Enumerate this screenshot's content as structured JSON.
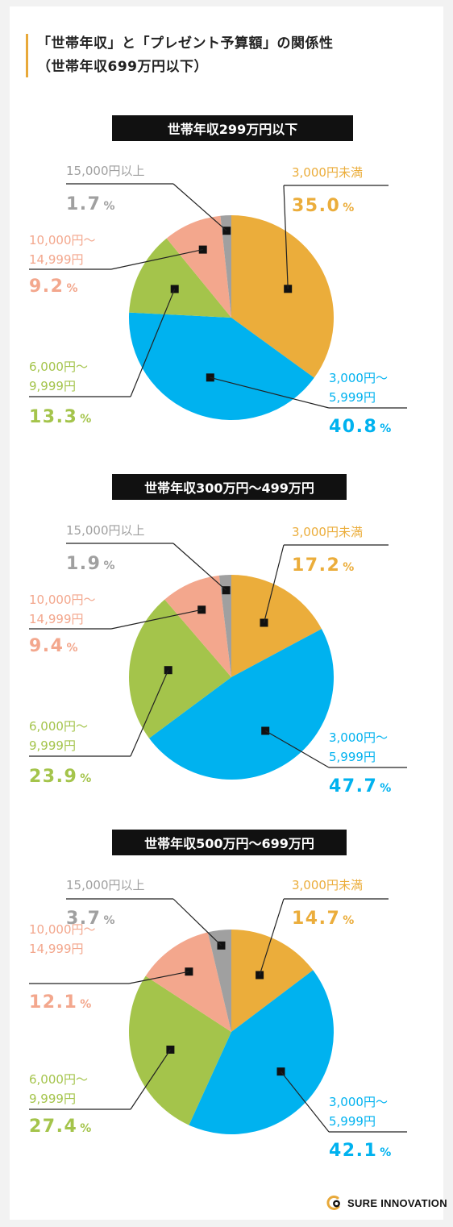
{
  "title": {
    "line1": "「世帯年収」と「プレゼント予算額」の関係性",
    "line2": "（世帯年収699万円以下）"
  },
  "colors": {
    "under_3000": "#ebad3b",
    "c3000_5999": "#00b2ef",
    "c6000_9999": "#a4c44b",
    "c10000_14999": "#f3a78d",
    "over_15000": "#a0a0a0",
    "accent": "#e8a93a"
  },
  "chart_data": [
    {
      "type": "pie",
      "title": "世帯年収299万円以下",
      "categories": [
        "3,000円未満",
        "3,000円〜5,999円",
        "6,000円〜9,999円",
        "10,000円〜14,999円",
        "15,000円以上"
      ],
      "values": [
        35.0,
        40.8,
        13.3,
        9.2,
        1.7
      ],
      "value_labels": [
        "35.0",
        "40.8",
        "13.3",
        "9.2",
        "1.7"
      ],
      "unit": "%"
    },
    {
      "type": "pie",
      "title": "世帯年収300万円〜499万円",
      "categories": [
        "3,000円未満",
        "3,000円〜5,999円",
        "6,000円〜9,999円",
        "10,000円〜14,999円",
        "15,000円以上"
      ],
      "values": [
        17.2,
        47.7,
        23.9,
        9.4,
        1.9
      ],
      "value_labels": [
        "17.2",
        "47.7",
        "23.9",
        "9.4",
        "1.9"
      ],
      "unit": "%"
    },
    {
      "type": "pie",
      "title": "世帯年収500万円〜699万円",
      "categories": [
        "3,000円未満",
        "3,000円〜5,999円",
        "6,000円〜9,999円",
        "10,000円〜14,999円",
        "15,000円以上"
      ],
      "values": [
        14.7,
        42.1,
        27.4,
        12.1,
        3.7
      ],
      "value_labels": [
        "14.7",
        "42.1",
        "27.4",
        "12.1",
        "3.7"
      ],
      "unit": "%"
    }
  ],
  "labels": {
    "under_3000": [
      "3,000円未満"
    ],
    "c3000_5999": [
      "3,000円〜",
      "5,999円"
    ],
    "c6000_9999": [
      "6,000円〜",
      "9,999円"
    ],
    "c10000_14999": [
      "10,000円〜",
      "14,999円"
    ],
    "over_15000": [
      "15,000円以上"
    ]
  },
  "logo": {
    "text": "SURE INNOVATION",
    "icon": "sure-innovation-logo-icon"
  }
}
